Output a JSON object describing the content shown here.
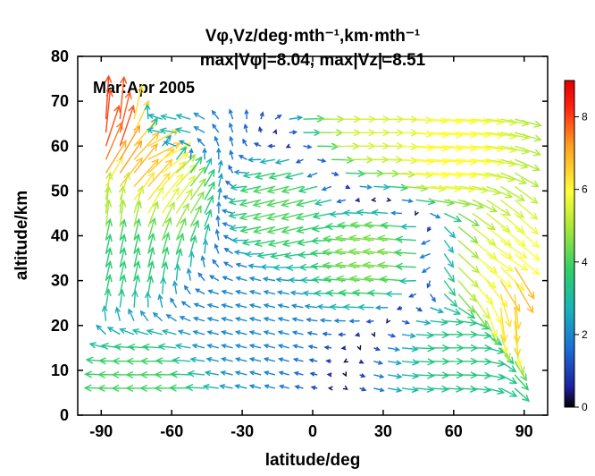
{
  "chart_data": {
    "type": "quiver",
    "title_line1": "Vφ,Vz/deg·mth⁻¹,km·mth⁻¹",
    "title_line2": "max|Vφ|=8.04, max|Vz|=8.51",
    "annotation": "Mar:Apr 2005",
    "xlabel": "latitude/deg",
    "ylabel": "altitude/km",
    "xlim": [
      -100,
      100
    ],
    "ylim": [
      0,
      80
    ],
    "xticks": [
      "-90",
      "-60",
      "-30",
      "0",
      "30",
      "60",
      "90"
    ],
    "yticks": [
      "0",
      "10",
      "20",
      "30",
      "40",
      "50",
      "60",
      "70",
      "80"
    ],
    "colorbar": {
      "ticks": [
        "0",
        "2",
        "4",
        "6",
        "8"
      ],
      "range": [
        0,
        9
      ]
    },
    "grid": false,
    "legend": "none",
    "sample_vectors": [
      {
        "lat": -88,
        "alt": 65,
        "u": 0.5,
        "w": 8.0
      },
      {
        "lat": -84,
        "alt": 60,
        "u": 2.5,
        "w": 7.5
      },
      {
        "lat": -80,
        "alt": 55,
        "u": 4.0,
        "w": 6.0
      },
      {
        "lat": -76,
        "alt": 52,
        "u": 4.5,
        "w": 5.0
      },
      {
        "lat": -70,
        "alt": 58,
        "u": 6.0,
        "w": 3.0
      },
      {
        "lat": -86,
        "alt": 45,
        "u": 0.5,
        "w": 5.0
      },
      {
        "lat": -84,
        "alt": 35,
        "u": 0.8,
        "w": 3.5
      },
      {
        "lat": -60,
        "alt": 63,
        "u": -3.0,
        "w": 0.5
      },
      {
        "lat": 20,
        "alt": 63,
        "u": 5.5,
        "w": 0.0
      },
      {
        "lat": 50,
        "alt": 58,
        "u": 6.0,
        "w": -0.5
      },
      {
        "lat": -10,
        "alt": 47,
        "u": -4.0,
        "w": -1.0
      },
      {
        "lat": 30,
        "alt": 36,
        "u": -4.5,
        "w": 0.5
      },
      {
        "lat": 84,
        "alt": 32,
        "u": 3.5,
        "w": -6.0
      },
      {
        "lat": 88,
        "alt": 25,
        "u": 0.5,
        "w": -6.5
      },
      {
        "lat": 80,
        "alt": 35,
        "u": 5.0,
        "w": -3.0
      },
      {
        "lat": -30,
        "alt": 20,
        "u": -2.0,
        "w": 0.5
      },
      {
        "lat": 60,
        "alt": 15,
        "u": 3.5,
        "w": 0.0
      },
      {
        "lat": -70,
        "alt": 6,
        "u": -4.0,
        "w": 0.0
      }
    ]
  }
}
